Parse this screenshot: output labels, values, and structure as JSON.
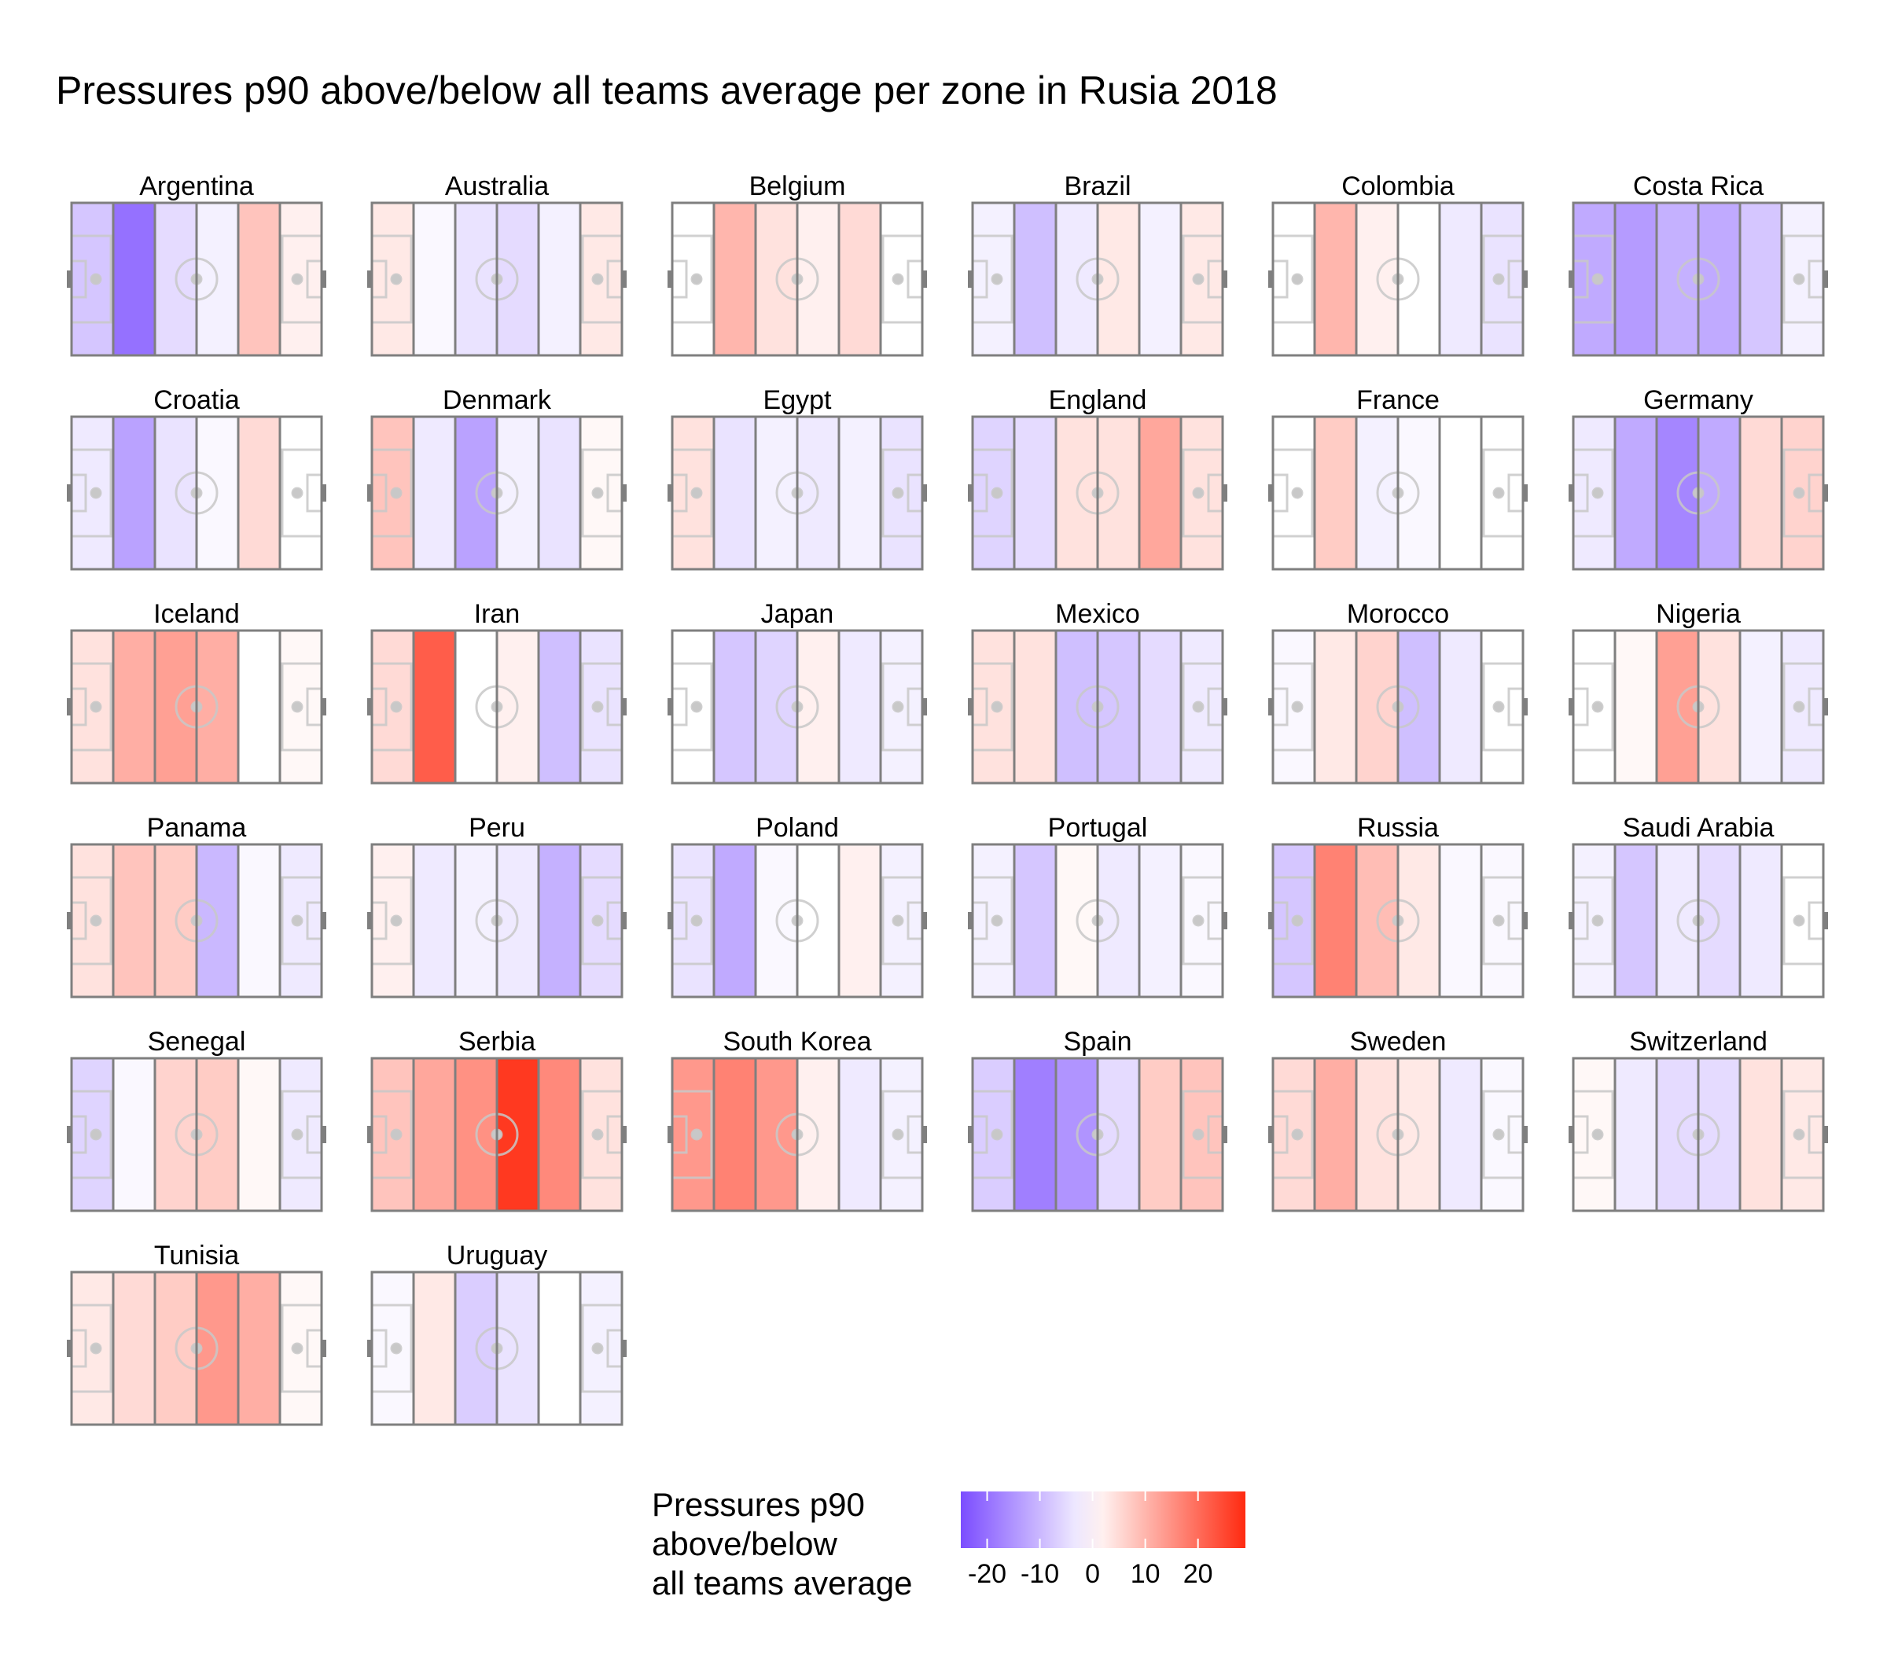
{
  "chart_data": {
    "type": "heatmap",
    "title": "Pressures p90 above/below all teams average per zone in Rusia 2018",
    "zones_per_pitch": 6,
    "value_range": [
      -25,
      29
    ],
    "colors": {
      "low": "#7b4dff",
      "mid": "#ffffff",
      "high": "#ff2a10",
      "pitch_line": "#7f7f7f",
      "pitch_marking": "#c8c8c8"
    },
    "legend": {
      "title_lines": [
        "Pressures p90",
        "above/below",
        "all teams average"
      ],
      "ticks": [
        -20,
        -10,
        0,
        10,
        20
      ],
      "tick_labels": [
        "-20",
        "-10",
        "0",
        "10",
        "20"
      ],
      "placement": "bottom"
    },
    "teams": [
      {
        "name": "Argentina",
        "values": [
          -8,
          -20,
          -5,
          -2,
          8,
          2
        ]
      },
      {
        "name": "Australia",
        "values": [
          3,
          -1,
          -4,
          -5,
          -2,
          3
        ]
      },
      {
        "name": "Belgium",
        "values": [
          0,
          10,
          4,
          2,
          5,
          0
        ]
      },
      {
        "name": "Brazil",
        "values": [
          -2,
          -9,
          -3,
          3,
          -2,
          3
        ]
      },
      {
        "name": "Colombia",
        "values": [
          0,
          10,
          2,
          0,
          -3,
          -4
        ]
      },
      {
        "name": "Costa Rica",
        "values": [
          -12,
          -14,
          -11,
          -12,
          -8,
          -2
        ]
      },
      {
        "name": "Croatia",
        "values": [
          -3,
          -13,
          -4,
          -1,
          5,
          0
        ]
      },
      {
        "name": "Denmark",
        "values": [
          8,
          -3,
          -13,
          -2,
          -4,
          1
        ]
      },
      {
        "name": "Egypt",
        "values": [
          4,
          -4,
          -2,
          -3,
          -2,
          -4
        ]
      },
      {
        "name": "England",
        "values": [
          -6,
          -5,
          4,
          4,
          12,
          4
        ]
      },
      {
        "name": "France",
        "values": [
          0,
          7,
          -2,
          -1,
          0,
          0
        ]
      },
      {
        "name": "Germany",
        "values": [
          -3,
          -12,
          -17,
          -12,
          5,
          6
        ]
      },
      {
        "name": "Iceland",
        "values": [
          4,
          11,
          13,
          11,
          0,
          1
        ]
      },
      {
        "name": "Iran",
        "values": [
          5,
          22,
          0,
          2,
          -9,
          -4
        ]
      },
      {
        "name": "Japan",
        "values": [
          0,
          -8,
          -6,
          2,
          -3,
          -2
        ]
      },
      {
        "name": "Mexico",
        "values": [
          4,
          4,
          -9,
          -8,
          -5,
          -3
        ]
      },
      {
        "name": "Morocco",
        "values": [
          -1,
          3,
          6,
          -9,
          -3,
          0
        ]
      },
      {
        "name": "Nigeria",
        "values": [
          0,
          1,
          13,
          4,
          -2,
          -3
        ]
      },
      {
        "name": "Panama",
        "values": [
          4,
          8,
          7,
          -10,
          -1,
          -3
        ]
      },
      {
        "name": "Peru",
        "values": [
          2,
          -3,
          -2,
          -3,
          -11,
          -5
        ]
      },
      {
        "name": "Poland",
        "values": [
          -4,
          -12,
          -1,
          0,
          2,
          -2
        ]
      },
      {
        "name": "Portugal",
        "values": [
          -2,
          -8,
          1,
          -3,
          -2,
          -1
        ]
      },
      {
        "name": "Russia",
        "values": [
          -8,
          17,
          9,
          3,
          -1,
          -1
        ]
      },
      {
        "name": "Saudi Arabia",
        "values": [
          -2,
          -8,
          -3,
          -5,
          -3,
          0
        ]
      },
      {
        "name": "Senegal",
        "values": [
          -6,
          -1,
          6,
          7,
          1,
          -3
        ]
      },
      {
        "name": "Serbia",
        "values": [
          8,
          12,
          15,
          27,
          16,
          4
        ]
      },
      {
        "name": "South Korea",
        "values": [
          14,
          17,
          14,
          2,
          -3,
          -2
        ]
      },
      {
        "name": "Spain",
        "values": [
          -7,
          -18,
          -15,
          -5,
          7,
          8
        ]
      },
      {
        "name": "Sweden",
        "values": [
          5,
          11,
          4,
          3,
          -3,
          -1
        ]
      },
      {
        "name": "Switzerland",
        "values": [
          1,
          -3,
          -5,
          -5,
          4,
          3
        ]
      },
      {
        "name": "Tunisia",
        "values": [
          3,
          5,
          7,
          14,
          11,
          1
        ]
      },
      {
        "name": "Uruguay",
        "values": [
          -1,
          3,
          -7,
          -4,
          0,
          -2
        ]
      }
    ]
  }
}
